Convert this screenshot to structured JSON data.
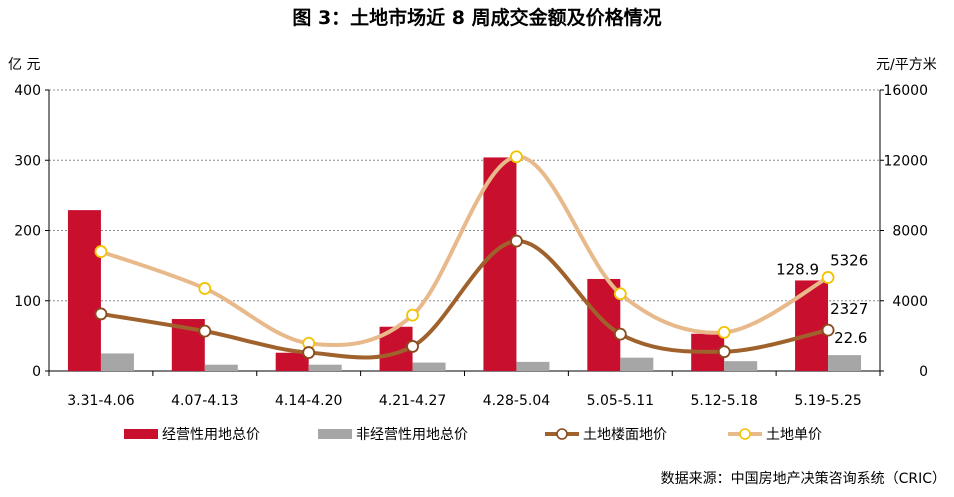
{
  "chart_data": {
    "type": "bar",
    "title": "图 3：土地市场近 8 周成交金额及价格情况",
    "ylabel": "亿 元",
    "y2label": "元/平方米",
    "ylim": [
      0,
      400
    ],
    "y2lim": [
      0,
      16000
    ],
    "yticks": [
      0,
      100,
      200,
      300,
      400
    ],
    "y2ticks": [
      0,
      4000,
      8000,
      12000,
      16000
    ],
    "grid": true,
    "legend_position": "bottom",
    "categories": [
      "3.31-4.06",
      "4.07-4.13",
      "4.14-4.20",
      "4.21-4.27",
      "4.28-5.04",
      "5.05-5.11",
      "5.12-5.18",
      "5.19-5.25"
    ],
    "series": [
      {
        "name": "经营性用地总价",
        "type": "bar",
        "axis": "left",
        "color": "#C8102E",
        "values": [
          229,
          74,
          26,
          63,
          304,
          131,
          53,
          128.9
        ]
      },
      {
        "name": "非经营性用地总价",
        "type": "bar",
        "axis": "left",
        "color": "#A6A6A6",
        "values": [
          25,
          9,
          9,
          12,
          13,
          19,
          14,
          22.6
        ]
      },
      {
        "name": "土地楼面地价",
        "type": "line",
        "axis": "right",
        "color": "#A0622D",
        "values": [
          3250,
          2270,
          1050,
          1400,
          7400,
          2100,
          1100,
          2327
        ]
      },
      {
        "name": "土地单价",
        "type": "line",
        "axis": "right",
        "color": "#E8B98A",
        "values": [
          6800,
          4700,
          1580,
          3180,
          12200,
          4400,
          2200,
          5326
        ]
      }
    ],
    "annotations": [
      {
        "label": "128.9",
        "category": "5.19-5.25",
        "series": "经营性用地总价"
      },
      {
        "label": "22.6",
        "category": "5.19-5.25",
        "series": "非经营性用地总价"
      },
      {
        "label": "2327",
        "category": "5.19-5.25",
        "series": "土地楼面地价"
      },
      {
        "label": "5326",
        "category": "5.19-5.25",
        "series": "土地单价"
      }
    ]
  },
  "source": "数据来源：中国房地产决策咨询系统（CRIC）"
}
